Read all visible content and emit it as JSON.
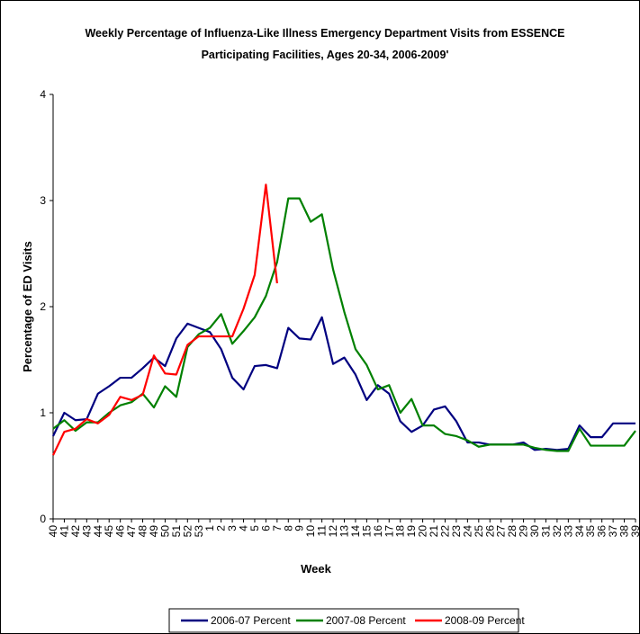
{
  "chart_data": {
    "type": "line",
    "title_line1": "Weekly Percentage of Influenza-Like Illness Emergency Department Visits from ESSENCE",
    "title_line2": "Participating Facilities, Ages 20-34, 2006-2009'",
    "xlabel": "Week",
    "ylabel": "Percentage of ED Visits",
    "ylim": [
      0,
      4
    ],
    "yticks": [
      "0",
      "1",
      "2",
      "3",
      "4"
    ],
    "categories": [
      "40",
      "41",
      "42",
      "43",
      "44",
      "45",
      "46",
      "47",
      "48",
      "49",
      "50",
      "51",
      "52",
      "53",
      "1",
      "2",
      "3",
      "4",
      "5",
      "6",
      "7",
      "8",
      "9",
      "10",
      "11",
      "12",
      "13",
      "14",
      "15",
      "16",
      "17",
      "18",
      "19",
      "20",
      "21",
      "22",
      "23",
      "24",
      "25",
      "26",
      "27",
      "28",
      "29",
      "30",
      "31",
      "32",
      "33",
      "34",
      "35",
      "36",
      "37",
      "38",
      "39"
    ],
    "legend_position": "bottom",
    "series": [
      {
        "name": "2006-07 Percent",
        "color": "#000080",
        "values": [
          0.78,
          1.0,
          0.93,
          0.94,
          1.18,
          1.25,
          1.33,
          1.33,
          1.42,
          1.52,
          1.44,
          1.7,
          1.84,
          1.8,
          1.76,
          1.6,
          1.33,
          1.22,
          1.44,
          1.45,
          1.42,
          1.8,
          1.7,
          1.69,
          1.9,
          1.46,
          1.52,
          1.36,
          1.12,
          1.26,
          1.18,
          0.92,
          0.82,
          0.88,
          1.03,
          1.06,
          0.92,
          0.72,
          0.72,
          0.7,
          0.7,
          0.7,
          0.72,
          0.65,
          0.66,
          0.65,
          0.66,
          0.88,
          0.77,
          0.77,
          0.9,
          0.9,
          0.9
        ]
      },
      {
        "name": "2007-08 Percent",
        "color": "#008000",
        "values": [
          0.85,
          0.93,
          0.83,
          0.91,
          0.91,
          1.0,
          1.07,
          1.1,
          1.18,
          1.05,
          1.25,
          1.15,
          1.62,
          1.74,
          1.8,
          1.93,
          1.65,
          1.77,
          1.9,
          2.1,
          2.42,
          3.02,
          3.02,
          2.8,
          2.87,
          2.35,
          1.95,
          1.6,
          1.45,
          1.22,
          1.26,
          1.0,
          1.13,
          0.88,
          0.88,
          0.8,
          0.78,
          0.74,
          0.68,
          0.7,
          0.7,
          0.7,
          0.7,
          0.67,
          0.65,
          0.64,
          0.64,
          0.85,
          0.69,
          0.69,
          0.69,
          0.69,
          0.83
        ]
      },
      {
        "name": "2008-09 Percent",
        "color": "#ff0000",
        "values": [
          0.6,
          0.82,
          0.85,
          0.94,
          0.9,
          0.98,
          1.15,
          1.12,
          1.17,
          1.54,
          1.37,
          1.36,
          1.64,
          1.72,
          1.72,
          1.72,
          1.72,
          1.98,
          2.3,
          3.15,
          2.22,
          null,
          null,
          null,
          null,
          null,
          null,
          null,
          null,
          null,
          null,
          null,
          null,
          null,
          null,
          null,
          null,
          null,
          null,
          null,
          null,
          null,
          null,
          null,
          null,
          null,
          null,
          null,
          null,
          null,
          null,
          null,
          null
        ]
      }
    ]
  }
}
